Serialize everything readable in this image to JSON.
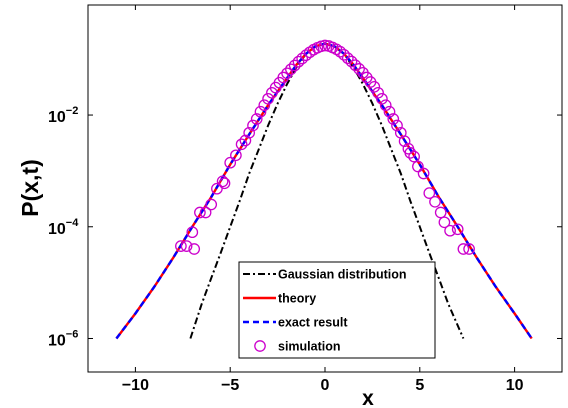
{
  "chart_data": {
    "type": "line",
    "title": "",
    "xlabel": "x",
    "ylabel": "P(x,t)",
    "xlim": [
      -12.5,
      12.5
    ],
    "ylim_log10": [
      -6.6,
      -0.03
    ],
    "yscale": "log",
    "grid": false,
    "legend_position": "bottom-center",
    "x_ticks": [
      {
        "value": -10,
        "label": "−10"
      },
      {
        "value": -5,
        "label": "−5"
      },
      {
        "value": 0,
        "label": "0"
      },
      {
        "value": 5,
        "label": "5"
      },
      {
        "value": 10,
        "label": "10"
      }
    ],
    "y_ticks": [
      {
        "value": 1e-06,
        "base": "10",
        "exponent": "−6"
      },
      {
        "value": 0.0001,
        "base": "10",
        "exponent": "−4"
      },
      {
        "value": 0.01,
        "base": "10",
        "exponent": "−2"
      }
    ],
    "series": [
      {
        "name": "Gaussian distribution",
        "style": "dashdot",
        "color": "#000000",
        "points": [
          [
            -7.1,
            1e-06
          ],
          [
            -6.5,
            4.2e-06
          ],
          [
            -6.0,
            1.2e-05
          ],
          [
            -5.5,
            3.4e-05
          ],
          [
            -5.0,
            0.0001
          ],
          [
            -4.5,
            0.00029
          ],
          [
            -4.0,
            0.0009
          ],
          [
            -3.5,
            0.0024
          ],
          [
            -3.0,
            0.0065
          ],
          [
            -2.5,
            0.016
          ],
          [
            -2.0,
            0.036
          ],
          [
            -1.5,
            0.072
          ],
          [
            -1.0,
            0.125
          ],
          [
            -0.5,
            0.17
          ],
          [
            0,
            0.19
          ],
          [
            0.5,
            0.17
          ],
          [
            1.0,
            0.125
          ],
          [
            1.5,
            0.072
          ],
          [
            2.0,
            0.036
          ],
          [
            2.5,
            0.016
          ],
          [
            3.0,
            0.0065
          ],
          [
            3.5,
            0.0024
          ],
          [
            4.0,
            0.0009
          ],
          [
            4.5,
            0.00029
          ],
          [
            5.0,
            0.0001
          ],
          [
            5.5,
            3.4e-05
          ],
          [
            6.0,
            1.2e-05
          ],
          [
            6.5,
            4.2e-06
          ],
          [
            7.3,
            1e-06
          ]
        ]
      },
      {
        "name": "theory",
        "style": "solid",
        "color": "#ff0000",
        "points": [
          [
            -11.0,
            1e-06
          ],
          [
            -10.0,
            2.8e-06
          ],
          [
            -9.0,
            8.5e-06
          ],
          [
            -8.0,
            2.8e-05
          ],
          [
            -7.0,
            0.0001
          ],
          [
            -6.0,
            0.00034
          ],
          [
            -5.0,
            0.0013
          ],
          [
            -4.0,
            0.0045
          ],
          [
            -3.0,
            0.015
          ],
          [
            -2.0,
            0.046
          ],
          [
            -1.5,
            0.08
          ],
          [
            -1.0,
            0.125
          ],
          [
            -0.5,
            0.17
          ],
          [
            0,
            0.19
          ],
          [
            0.5,
            0.17
          ],
          [
            1.0,
            0.125
          ],
          [
            1.5,
            0.08
          ],
          [
            2.0,
            0.046
          ],
          [
            3.0,
            0.015
          ],
          [
            4.0,
            0.0045
          ],
          [
            5.0,
            0.0013
          ],
          [
            6.0,
            0.00034
          ],
          [
            7.0,
            0.0001
          ],
          [
            8.0,
            2.8e-05
          ],
          [
            9.0,
            8.5e-06
          ],
          [
            10.0,
            2.8e-06
          ],
          [
            10.9,
            1e-06
          ]
        ]
      },
      {
        "name": "exact result",
        "style": "dashed",
        "color": "#0000ff",
        "points": [
          [
            -11.0,
            1e-06
          ],
          [
            -10.0,
            2.8e-06
          ],
          [
            -9.0,
            8.5e-06
          ],
          [
            -8.0,
            2.8e-05
          ],
          [
            -7.0,
            0.0001
          ],
          [
            -6.0,
            0.00034
          ],
          [
            -5.0,
            0.0013
          ],
          [
            -4.0,
            0.0045
          ],
          [
            -3.0,
            0.015
          ],
          [
            -2.0,
            0.046
          ],
          [
            -1.5,
            0.08
          ],
          [
            -1.0,
            0.125
          ],
          [
            -0.5,
            0.17
          ],
          [
            0,
            0.19
          ],
          [
            0.5,
            0.17
          ],
          [
            1.0,
            0.125
          ],
          [
            1.5,
            0.08
          ],
          [
            2.0,
            0.046
          ],
          [
            3.0,
            0.015
          ],
          [
            4.0,
            0.0045
          ],
          [
            5.0,
            0.0013
          ],
          [
            6.0,
            0.00034
          ],
          [
            7.0,
            0.0001
          ],
          [
            8.0,
            2.8e-05
          ],
          [
            9.0,
            8.5e-06
          ],
          [
            10.0,
            2.8e-06
          ],
          [
            10.9,
            1e-06
          ]
        ]
      },
      {
        "name": "simulation",
        "style": "marker-circle",
        "color": "#cc00cc",
        "points": [
          [
            -7.6,
            4.5e-05
          ],
          [
            -7.3,
            4.5e-05
          ],
          [
            -7.0,
            8e-05
          ],
          [
            -6.9,
            4e-05
          ],
          [
            -6.6,
            0.00018
          ],
          [
            -6.3,
            0.00018
          ],
          [
            -6.0,
            0.00025
          ],
          [
            -5.7,
            0.00048
          ],
          [
            -5.4,
            0.00065
          ],
          [
            -5.3,
            0.0006
          ],
          [
            -5.0,
            0.0014
          ],
          [
            -4.7,
            0.0019
          ],
          [
            -4.4,
            0.003
          ],
          [
            -4.2,
            0.0035
          ],
          [
            -4.0,
            0.0048
          ],
          [
            -3.8,
            0.0065
          ],
          [
            -3.6,
            0.0085
          ],
          [
            -3.4,
            0.0115
          ],
          [
            -3.2,
            0.015
          ],
          [
            -3.0,
            0.0195
          ],
          [
            -2.8,
            0.025
          ],
          [
            -2.6,
            0.031
          ],
          [
            -2.4,
            0.038
          ],
          [
            -2.2,
            0.047
          ],
          [
            -2.0,
            0.056
          ],
          [
            -1.8,
            0.066
          ],
          [
            -1.6,
            0.077
          ],
          [
            -1.4,
            0.09
          ],
          [
            -1.2,
            0.103
          ],
          [
            -1.0,
            0.118
          ],
          [
            -0.8,
            0.133
          ],
          [
            -0.6,
            0.148
          ],
          [
            -0.4,
            0.16
          ],
          [
            -0.2,
            0.17
          ],
          [
            0.0,
            0.176
          ],
          [
            0.2,
            0.172
          ],
          [
            0.4,
            0.162
          ],
          [
            0.6,
            0.15
          ],
          [
            0.8,
            0.136
          ],
          [
            1.0,
            0.12
          ],
          [
            1.2,
            0.104
          ],
          [
            1.4,
            0.091
          ],
          [
            1.6,
            0.078
          ],
          [
            1.8,
            0.067
          ],
          [
            2.0,
            0.057
          ],
          [
            2.2,
            0.047
          ],
          [
            2.4,
            0.039
          ],
          [
            2.6,
            0.032
          ],
          [
            2.8,
            0.025
          ],
          [
            3.0,
            0.0195
          ],
          [
            3.2,
            0.015
          ],
          [
            3.4,
            0.0115
          ],
          [
            3.6,
            0.0085
          ],
          [
            3.8,
            0.0065
          ],
          [
            4.0,
            0.0048
          ],
          [
            4.2,
            0.0034
          ],
          [
            4.4,
            0.0025
          ],
          [
            4.5,
            0.0021
          ],
          [
            4.7,
            0.0018
          ],
          [
            4.9,
            0.0012
          ],
          [
            5.2,
            0.0009
          ],
          [
            5.5,
            0.0004
          ],
          [
            5.8,
            0.00028
          ],
          [
            6.1,
            0.00018
          ],
          [
            6.3,
            0.00012
          ],
          [
            6.6,
            8.5e-05
          ],
          [
            7.0,
            9e-05
          ],
          [
            7.3,
            4e-05
          ],
          [
            7.6,
            4e-05
          ]
        ]
      }
    ]
  }
}
